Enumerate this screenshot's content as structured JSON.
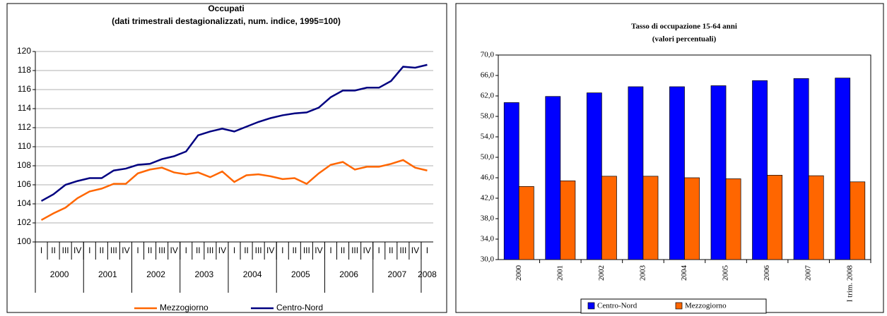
{
  "chart_data": [
    {
      "type": "line",
      "title": "Occupati",
      "subtitle": "(dati trimestrali destagionalizzati, num. indice, 1995=100)",
      "categories": [
        "I",
        "II",
        "III",
        "IV",
        "I",
        "II",
        "III",
        "IV",
        "I",
        "II",
        "III",
        "IV",
        "I",
        "II",
        "III",
        "IV",
        "I",
        "II",
        "III",
        "IV",
        "I",
        "II",
        "III",
        "IV",
        "I",
        "II",
        "III",
        "IV",
        "I",
        "II",
        "III",
        "IV",
        "I"
      ],
      "year_labels": [
        "2000",
        "2001",
        "2002",
        "2003",
        "2004",
        "2005",
        "2006",
        "2007",
        "2008"
      ],
      "series": [
        {
          "name": "Mezzogiorno",
          "color": "#ff6600",
          "values": [
            102.3,
            103.0,
            103.6,
            104.6,
            105.3,
            105.6,
            106.1,
            106.1,
            107.2,
            107.6,
            107.8,
            107.3,
            107.1,
            107.3,
            106.8,
            107.4,
            106.3,
            107.0,
            107.1,
            106.9,
            106.6,
            106.7,
            106.1,
            107.2,
            108.1,
            108.4,
            107.6,
            107.9,
            107.9,
            108.2,
            108.6,
            107.8,
            107.5
          ]
        },
        {
          "name": "Centro-Nord",
          "color": "#000080",
          "values": [
            104.3,
            105.0,
            106.0,
            106.4,
            106.7,
            106.7,
            107.5,
            107.7,
            108.1,
            108.2,
            108.7,
            109.0,
            109.5,
            111.2,
            111.6,
            111.9,
            111.6,
            112.1,
            112.6,
            113.0,
            113.3,
            113.5,
            113.6,
            114.1,
            115.2,
            115.9,
            115.9,
            116.2,
            116.2,
            116.9,
            118.4,
            118.3,
            118.6
          ]
        }
      ],
      "ylim": [
        100,
        120
      ],
      "yticks": [
        100,
        102,
        104,
        106,
        108,
        110,
        112,
        114,
        116,
        118,
        120
      ],
      "grid": true,
      "legend": "bottom"
    },
    {
      "type": "bar",
      "title": "Tasso di occupazione 15-64 anni",
      "subtitle": "(valori percentuali)",
      "categories": [
        "2000",
        "2001",
        "2002",
        "2003",
        "2004",
        "2005",
        "2006",
        "2007",
        "I trim. 2008"
      ],
      "series": [
        {
          "name": "Centro-Nord",
          "color": "#0000ff",
          "values": [
            60.7,
            61.9,
            62.6,
            63.8,
            63.8,
            64.0,
            65.0,
            65.4,
            65.5
          ]
        },
        {
          "name": "Mezzogiorno",
          "color": "#ff6600",
          "values": [
            44.3,
            45.4,
            46.3,
            46.3,
            46.0,
            45.8,
            46.5,
            46.4,
            45.2
          ]
        }
      ],
      "ylim": [
        30,
        70
      ],
      "yticks": [
        {
          "value": 30,
          "label": "30,0"
        },
        {
          "value": 34,
          "label": "34,0"
        },
        {
          "value": 38,
          "label": "38,0"
        },
        {
          "value": 42,
          "label": "42,0"
        },
        {
          "value": 46,
          "label": "46,0"
        },
        {
          "value": 50,
          "label": "50,0"
        },
        {
          "value": 54,
          "label": "54,0"
        },
        {
          "value": 58,
          "label": "58,0"
        },
        {
          "value": 62,
          "label": "62,0"
        },
        {
          "value": 66,
          "label": "66,0"
        },
        {
          "value": 70,
          "label": "70,0"
        }
      ],
      "grid": false,
      "legend": "bottom"
    }
  ]
}
